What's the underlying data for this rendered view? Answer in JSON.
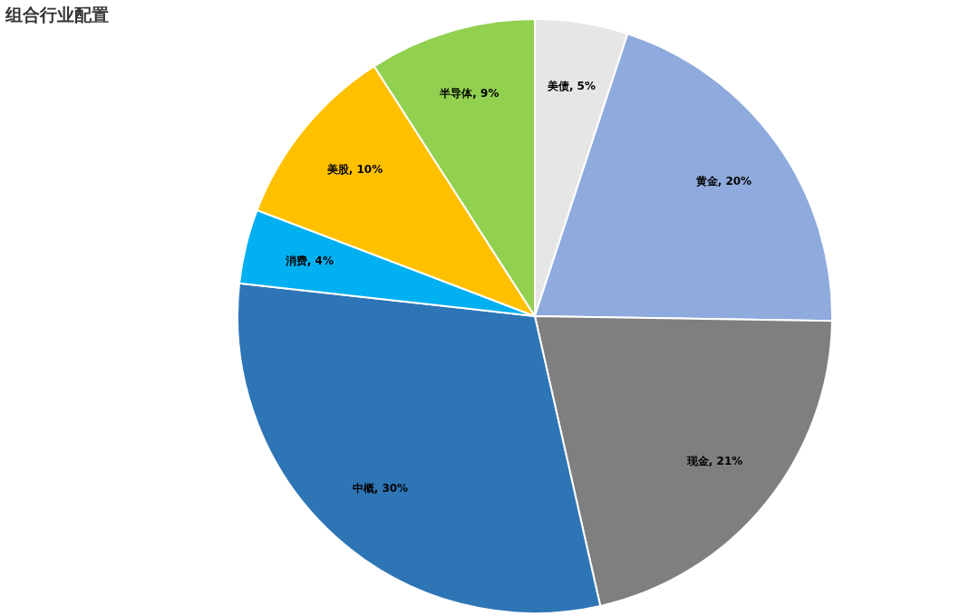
{
  "chart_data": {
    "type": "pie",
    "title": "组合行业配置",
    "categories": [
      "美债",
      "黄金",
      "现金",
      "中概",
      "消费",
      "美股",
      "半导体"
    ],
    "values": [
      5,
      20,
      21,
      30,
      4,
      10,
      9
    ],
    "value_labels": [
      "5%",
      "20%",
      "21%",
      "30%",
      "4%",
      "10%",
      "9%"
    ],
    "colors": [
      "#e7e6e6",
      "#8faadc",
      "#7f7f7f",
      "#2e75b6",
      "#00b0f0",
      "#ffc000",
      "#92d050"
    ],
    "legend": false
  }
}
